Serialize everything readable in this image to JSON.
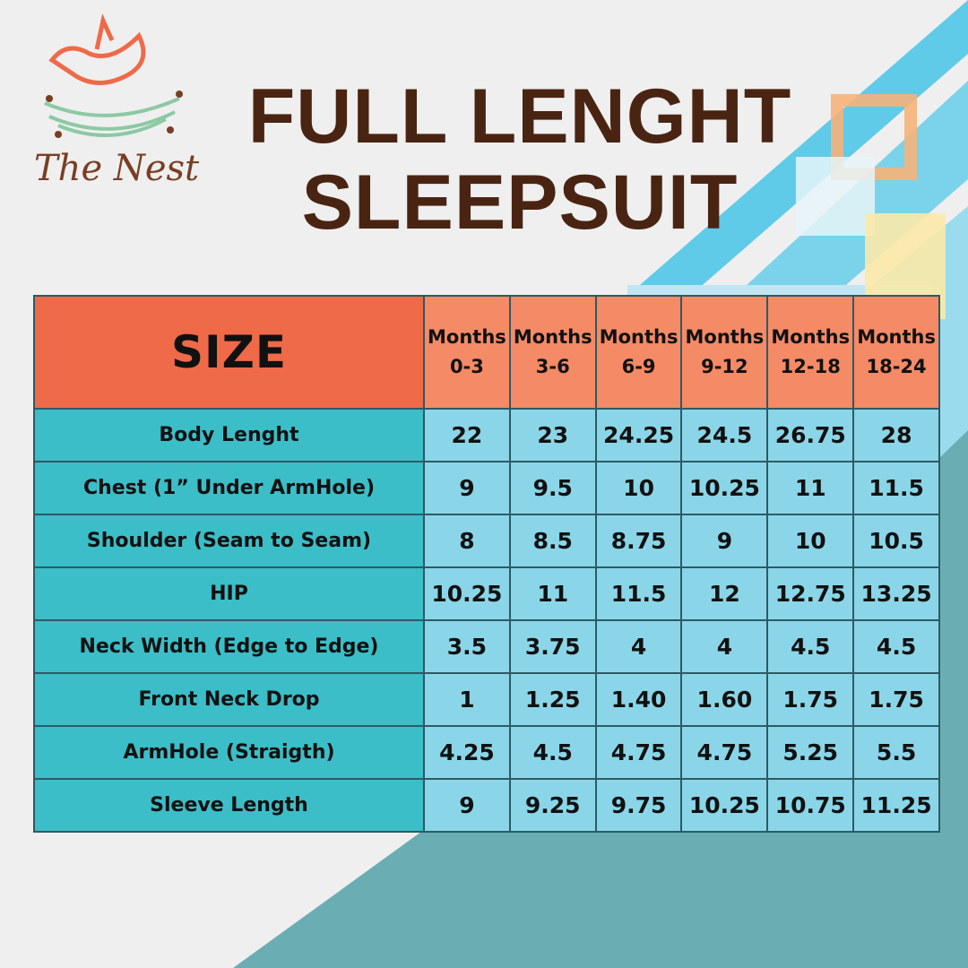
{
  "brand": {
    "name": "The Nest"
  },
  "title": {
    "line1": "FULL LENGHT",
    "line2": "SLEEPSUIT"
  },
  "colors": {
    "title": "#4a2412",
    "header_label": "#ee6a48",
    "header_cells": "#f48a66",
    "row_labels": "#3bbec8",
    "cells": "#8ad6e8",
    "background": "#efefef",
    "accent_teal": "#6aaeb4"
  },
  "table": {
    "corner": "SIZE",
    "columns": [
      {
        "top": "Months",
        "range": "0-3"
      },
      {
        "top": "Months",
        "range": "3-6"
      },
      {
        "top": "Months",
        "range": "6-9"
      },
      {
        "top": "Months",
        "range": "9-12"
      },
      {
        "top": "Months",
        "range": "12-18"
      },
      {
        "top": "Months",
        "range": "18-24"
      }
    ],
    "rows": [
      {
        "label": "Body Lenght",
        "values": [
          "22",
          "23",
          "24.25",
          "24.5",
          "26.75",
          "28"
        ]
      },
      {
        "label": "Chest (1” Under ArmHole)",
        "values": [
          "9",
          "9.5",
          "10",
          "10.25",
          "11",
          "11.5"
        ]
      },
      {
        "label": "Shoulder (Seam to Seam)",
        "values": [
          "8",
          "8.5",
          "8.75",
          "9",
          "10",
          "10.5"
        ]
      },
      {
        "label": "HIP",
        "values": [
          "10.25",
          "11",
          "11.5",
          "12",
          "12.75",
          "13.25"
        ]
      },
      {
        "label": "Neck Width (Edge to Edge)",
        "values": [
          "3.5",
          "3.75",
          "4",
          "4",
          "4.5",
          "4.5"
        ]
      },
      {
        "label": "Front Neck Drop",
        "values": [
          "1",
          "1.25",
          "1.40",
          "1.60",
          "1.75",
          "1.75"
        ]
      },
      {
        "label": "ArmHole (Straigth)",
        "values": [
          "4.25",
          "4.5",
          "4.75",
          "4.75",
          "5.25",
          "5.5"
        ]
      },
      {
        "label": "Sleeve Length",
        "values": [
          "9",
          "9.25",
          "9.75",
          "10.25",
          "10.75",
          "11.25"
        ]
      }
    ]
  }
}
